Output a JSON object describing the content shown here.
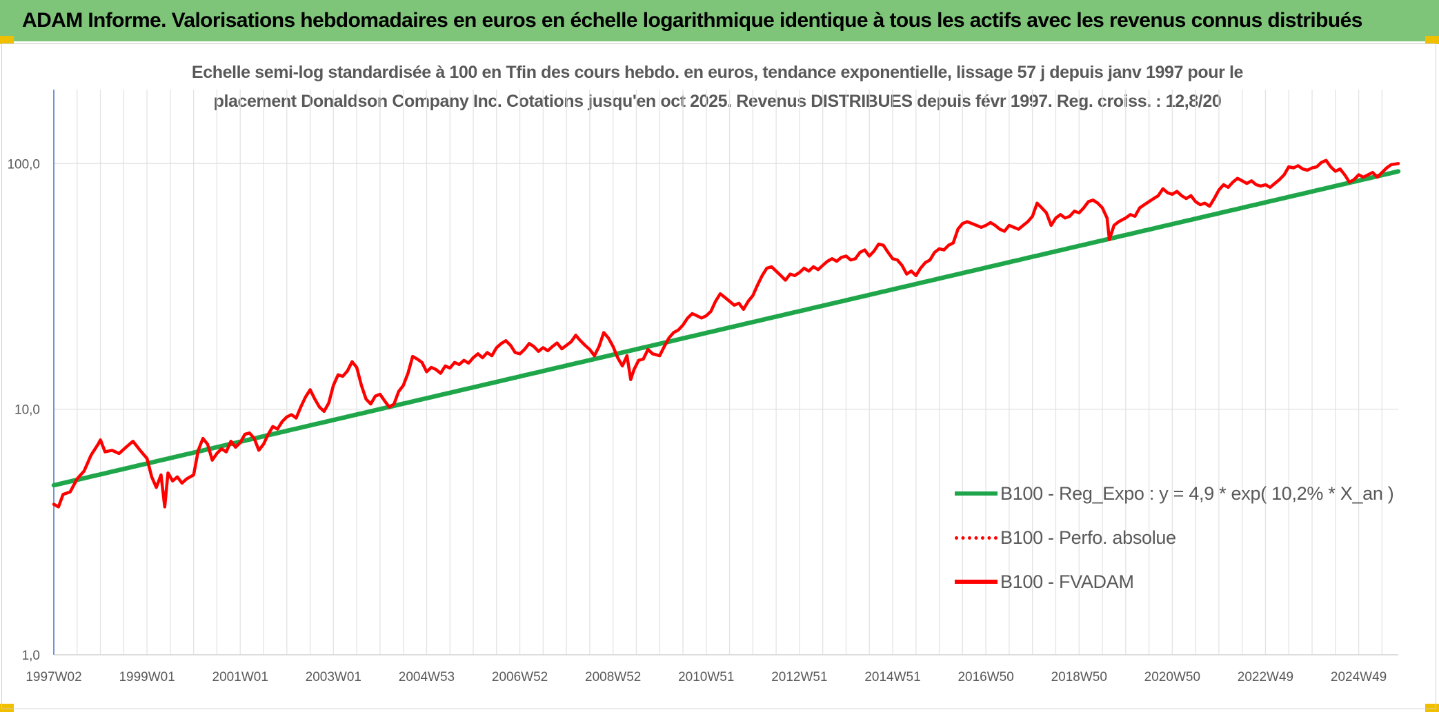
{
  "header": {
    "title": "ADAM Informe. Valorisations hebdomadaires en euros en échelle logarithmique identique à tous les actifs avec les revenus connus distribués"
  },
  "chart_data": {
    "type": "line",
    "title_line1": "Echelle semi-log standardisée à 100 en Tfin des cours hebdo. en euros, tendance exponentielle, lissage 57 j depuis janv 1997 pour le",
    "title_line2": "placement Donaldson Company Inc. Cotations jusqu'en oct 2025. Revenus DISTRIBUES depuis févr 1997. Reg. croiss. : 12,8/20",
    "y_scale": "log",
    "ylim": [
      1,
      200
    ],
    "y_ticks": [
      {
        "value": 1,
        "label": "1,0"
      },
      {
        "value": 10,
        "label": "10,0"
      },
      {
        "value": 100,
        "label": "100,0"
      }
    ],
    "xlim": [
      1997.0,
      2025.85
    ],
    "x_ticks": [
      {
        "t": 1997.0,
        "label": "1997W02"
      },
      {
        "t": 1999.0,
        "label": "1999W01"
      },
      {
        "t": 2001.0,
        "label": "2001W01"
      },
      {
        "t": 2003.0,
        "label": "2003W01"
      },
      {
        "t": 2005.0,
        "label": "2004W53"
      },
      {
        "t": 2007.0,
        "label": "2006W52"
      },
      {
        "t": 2009.0,
        "label": "2008W52"
      },
      {
        "t": 2011.0,
        "label": "2010W51"
      },
      {
        "t": 2013.0,
        "label": "2012W51"
      },
      {
        "t": 2015.0,
        "label": "2014W51"
      },
      {
        "t": 2017.0,
        "label": "2016W50"
      },
      {
        "t": 2019.0,
        "label": "2018W50"
      },
      {
        "t": 2021.0,
        "label": "2020W50"
      },
      {
        "t": 2023.0,
        "label": "2022W49"
      },
      {
        "t": 2025.0,
        "label": "2024W49"
      }
    ],
    "legend_position": "bottom-right",
    "series": [
      {
        "name": "B100 - Reg_Expo : y = 4,9 * exp( 10,2% *  X_an )",
        "style": "solid",
        "color": "#1fa64a",
        "a": 4.9,
        "rate": 0.102,
        "x_start": 1997.0,
        "x_end": 2025.85
      },
      {
        "name": "B100 - Perfo. absolue",
        "style": "dotted",
        "color": "#ff0000",
        "points": []
      },
      {
        "name": "B100 - FVADAM",
        "style": "solid",
        "color": "#ff0000",
        "points": [
          [
            1997.0,
            4.1
          ],
          [
            1997.1,
            4.0
          ],
          [
            1997.2,
            4.5
          ],
          [
            1997.35,
            4.6
          ],
          [
            1997.5,
            5.2
          ],
          [
            1997.65,
            5.6
          ],
          [
            1997.8,
            6.5
          ],
          [
            1997.95,
            7.2
          ],
          [
            1998.0,
            7.5
          ],
          [
            1998.1,
            6.7
          ],
          [
            1998.25,
            6.8
          ],
          [
            1998.4,
            6.6
          ],
          [
            1998.55,
            7.0
          ],
          [
            1998.7,
            7.4
          ],
          [
            1998.85,
            6.8
          ],
          [
            1999.0,
            6.3
          ],
          [
            1999.1,
            5.3
          ],
          [
            1999.2,
            4.8
          ],
          [
            1999.3,
            5.4
          ],
          [
            1999.38,
            4.0
          ],
          [
            1999.45,
            5.5
          ],
          [
            1999.55,
            5.1
          ],
          [
            1999.65,
            5.3
          ],
          [
            1999.75,
            5.0
          ],
          [
            1999.85,
            5.2
          ],
          [
            2000.0,
            5.4
          ],
          [
            2000.1,
            6.8
          ],
          [
            2000.2,
            7.6
          ],
          [
            2000.3,
            7.2
          ],
          [
            2000.4,
            6.2
          ],
          [
            2000.5,
            6.6
          ],
          [
            2000.6,
            6.9
          ],
          [
            2000.7,
            6.7
          ],
          [
            2000.8,
            7.4
          ],
          [
            2000.9,
            7.0
          ],
          [
            2001.0,
            7.3
          ],
          [
            2001.1,
            7.9
          ],
          [
            2001.2,
            8.0
          ],
          [
            2001.3,
            7.6
          ],
          [
            2001.4,
            6.8
          ],
          [
            2001.5,
            7.2
          ],
          [
            2001.6,
            7.9
          ],
          [
            2001.7,
            8.5
          ],
          [
            2001.8,
            8.3
          ],
          [
            2001.9,
            8.9
          ],
          [
            2002.0,
            9.3
          ],
          [
            2002.1,
            9.5
          ],
          [
            2002.2,
            9.2
          ],
          [
            2002.3,
            10.2
          ],
          [
            2002.4,
            11.2
          ],
          [
            2002.5,
            12.0
          ],
          [
            2002.6,
            11.0
          ],
          [
            2002.7,
            10.2
          ],
          [
            2002.8,
            9.8
          ],
          [
            2002.9,
            10.6
          ],
          [
            2003.0,
            12.5
          ],
          [
            2003.1,
            13.8
          ],
          [
            2003.2,
            13.6
          ],
          [
            2003.3,
            14.3
          ],
          [
            2003.4,
            15.6
          ],
          [
            2003.5,
            14.8
          ],
          [
            2003.6,
            12.5
          ],
          [
            2003.7,
            11.0
          ],
          [
            2003.8,
            10.5
          ],
          [
            2003.9,
            11.3
          ],
          [
            2004.0,
            11.5
          ],
          [
            2004.1,
            10.8
          ],
          [
            2004.2,
            10.2
          ],
          [
            2004.3,
            10.5
          ],
          [
            2004.4,
            11.8
          ],
          [
            2004.5,
            12.5
          ],
          [
            2004.6,
            14.0
          ],
          [
            2004.7,
            16.4
          ],
          [
            2004.8,
            16.0
          ],
          [
            2004.9,
            15.5
          ],
          [
            2005.0,
            14.2
          ],
          [
            2005.1,
            14.8
          ],
          [
            2005.2,
            14.5
          ],
          [
            2005.3,
            14.0
          ],
          [
            2005.4,
            15.0
          ],
          [
            2005.5,
            14.7
          ],
          [
            2005.6,
            15.5
          ],
          [
            2005.7,
            15.2
          ],
          [
            2005.8,
            15.8
          ],
          [
            2005.9,
            15.4
          ],
          [
            2006.0,
            16.2
          ],
          [
            2006.1,
            16.8
          ],
          [
            2006.2,
            16.2
          ],
          [
            2006.3,
            17.0
          ],
          [
            2006.4,
            16.5
          ],
          [
            2006.5,
            17.8
          ],
          [
            2006.6,
            18.5
          ],
          [
            2006.7,
            19.0
          ],
          [
            2006.8,
            18.2
          ],
          [
            2006.9,
            17.0
          ],
          [
            2007.0,
            16.8
          ],
          [
            2007.1,
            17.5
          ],
          [
            2007.2,
            18.5
          ],
          [
            2007.3,
            18.0
          ],
          [
            2007.4,
            17.2
          ],
          [
            2007.5,
            17.8
          ],
          [
            2007.6,
            17.3
          ],
          [
            2007.7,
            18.0
          ],
          [
            2007.8,
            18.6
          ],
          [
            2007.9,
            17.6
          ],
          [
            2008.0,
            18.2
          ],
          [
            2008.1,
            18.8
          ],
          [
            2008.2,
            20.0
          ],
          [
            2008.3,
            19.0
          ],
          [
            2008.4,
            18.2
          ],
          [
            2008.5,
            17.5
          ],
          [
            2008.6,
            16.5
          ],
          [
            2008.7,
            18.0
          ],
          [
            2008.8,
            20.5
          ],
          [
            2008.9,
            19.5
          ],
          [
            2009.0,
            18.0
          ],
          [
            2009.1,
            16.2
          ],
          [
            2009.2,
            15.0
          ],
          [
            2009.3,
            16.5
          ],
          [
            2009.38,
            13.2
          ],
          [
            2009.45,
            14.5
          ],
          [
            2009.55,
            15.8
          ],
          [
            2009.65,
            16.0
          ],
          [
            2009.75,
            17.5
          ],
          [
            2009.85,
            16.8
          ],
          [
            2010.0,
            16.5
          ],
          [
            2010.1,
            18.0
          ],
          [
            2010.2,
            19.5
          ],
          [
            2010.3,
            20.5
          ],
          [
            2010.4,
            21.0
          ],
          [
            2010.5,
            22.0
          ],
          [
            2010.6,
            23.5
          ],
          [
            2010.7,
            24.5
          ],
          [
            2010.8,
            24.0
          ],
          [
            2010.9,
            23.5
          ],
          [
            2011.0,
            24.0
          ],
          [
            2011.1,
            25.0
          ],
          [
            2011.2,
            27.5
          ],
          [
            2011.3,
            29.5
          ],
          [
            2011.4,
            28.5
          ],
          [
            2011.5,
            27.5
          ],
          [
            2011.6,
            26.5
          ],
          [
            2011.7,
            27.0
          ],
          [
            2011.8,
            25.5
          ],
          [
            2011.9,
            27.5
          ],
          [
            2012.0,
            29.0
          ],
          [
            2012.1,
            32.0
          ],
          [
            2012.2,
            35.0
          ],
          [
            2012.3,
            37.5
          ],
          [
            2012.4,
            38.0
          ],
          [
            2012.5,
            36.5
          ],
          [
            2012.6,
            35.0
          ],
          [
            2012.7,
            33.5
          ],
          [
            2012.8,
            35.5
          ],
          [
            2012.9,
            35.0
          ],
          [
            2013.0,
            36.0
          ],
          [
            2013.1,
            37.5
          ],
          [
            2013.2,
            36.5
          ],
          [
            2013.3,
            38.0
          ],
          [
            2013.4,
            37.0
          ],
          [
            2013.5,
            38.5
          ],
          [
            2013.6,
            40.0
          ],
          [
            2013.7,
            41.0
          ],
          [
            2013.8,
            40.0
          ],
          [
            2013.9,
            41.5
          ],
          [
            2014.0,
            42.0
          ],
          [
            2014.1,
            40.5
          ],
          [
            2014.2,
            41.0
          ],
          [
            2014.3,
            43.5
          ],
          [
            2014.4,
            44.5
          ],
          [
            2014.5,
            42.0
          ],
          [
            2014.6,
            44.0
          ],
          [
            2014.7,
            47.0
          ],
          [
            2014.8,
            46.5
          ],
          [
            2014.9,
            43.5
          ],
          [
            2015.0,
            41.0
          ],
          [
            2015.1,
            40.5
          ],
          [
            2015.2,
            38.5
          ],
          [
            2015.3,
            35.5
          ],
          [
            2015.4,
            36.5
          ],
          [
            2015.5,
            35.0
          ],
          [
            2015.6,
            37.5
          ],
          [
            2015.7,
            39.5
          ],
          [
            2015.8,
            40.5
          ],
          [
            2015.9,
            43.5
          ],
          [
            2016.0,
            45.0
          ],
          [
            2016.1,
            44.5
          ],
          [
            2016.2,
            46.5
          ],
          [
            2016.3,
            47.5
          ],
          [
            2016.4,
            54.0
          ],
          [
            2016.5,
            57.0
          ],
          [
            2016.6,
            58.0
          ],
          [
            2016.7,
            57.0
          ],
          [
            2016.8,
            56.0
          ],
          [
            2016.9,
            55.0
          ],
          [
            2017.0,
            56.0
          ],
          [
            2017.1,
            57.5
          ],
          [
            2017.2,
            56.0
          ],
          [
            2017.3,
            54.0
          ],
          [
            2017.4,
            53.0
          ],
          [
            2017.5,
            56.0
          ],
          [
            2017.6,
            55.0
          ],
          [
            2017.7,
            54.0
          ],
          [
            2017.8,
            56.0
          ],
          [
            2017.9,
            58.0
          ],
          [
            2018.0,
            61.0
          ],
          [
            2018.1,
            69.0
          ],
          [
            2018.2,
            66.0
          ],
          [
            2018.3,
            63.0
          ],
          [
            2018.4,
            56.0
          ],
          [
            2018.5,
            60.0
          ],
          [
            2018.6,
            62.0
          ],
          [
            2018.7,
            60.0
          ],
          [
            2018.8,
            61.0
          ],
          [
            2018.9,
            64.0
          ],
          [
            2019.0,
            63.0
          ],
          [
            2019.1,
            66.0
          ],
          [
            2019.2,
            70.0
          ],
          [
            2019.3,
            71.0
          ],
          [
            2019.4,
            69.0
          ],
          [
            2019.5,
            66.0
          ],
          [
            2019.6,
            60.0
          ],
          [
            2019.65,
            49.0
          ],
          [
            2019.75,
            56.0
          ],
          [
            2019.85,
            58.0
          ],
          [
            2020.0,
            60.0
          ],
          [
            2020.1,
            62.0
          ],
          [
            2020.2,
            61.0
          ],
          [
            2020.3,
            66.0
          ],
          [
            2020.4,
            68.0
          ],
          [
            2020.5,
            70.0
          ],
          [
            2020.6,
            72.0
          ],
          [
            2020.7,
            74.0
          ],
          [
            2020.8,
            79.0
          ],
          [
            2020.9,
            76.0
          ],
          [
            2021.0,
            75.0
          ],
          [
            2021.1,
            77.0
          ],
          [
            2021.2,
            74.0
          ],
          [
            2021.3,
            72.0
          ],
          [
            2021.4,
            74.0
          ],
          [
            2021.5,
            70.0
          ],
          [
            2021.6,
            68.0
          ],
          [
            2021.7,
            69.0
          ],
          [
            2021.8,
            67.0
          ],
          [
            2021.9,
            72.0
          ],
          [
            2022.0,
            78.0
          ],
          [
            2022.1,
            82.0
          ],
          [
            2022.2,
            80.0
          ],
          [
            2022.3,
            84.0
          ],
          [
            2022.4,
            87.0
          ],
          [
            2022.5,
            85.0
          ],
          [
            2022.6,
            83.0
          ],
          [
            2022.7,
            85.0
          ],
          [
            2022.8,
            82.0
          ],
          [
            2022.9,
            81.0
          ],
          [
            2023.0,
            82.0
          ],
          [
            2023.1,
            80.0
          ],
          [
            2023.2,
            83.0
          ],
          [
            2023.3,
            86.0
          ],
          [
            2023.4,
            90.0
          ],
          [
            2023.5,
            97.0
          ],
          [
            2023.6,
            96.0
          ],
          [
            2023.7,
            98.0
          ],
          [
            2023.8,
            95.0
          ],
          [
            2023.9,
            94.0
          ],
          [
            2024.0,
            96.0
          ],
          [
            2024.1,
            97.0
          ],
          [
            2024.2,
            101.0
          ],
          [
            2024.3,
            103.0
          ],
          [
            2024.4,
            97.0
          ],
          [
            2024.5,
            93.0
          ],
          [
            2024.6,
            95.0
          ],
          [
            2024.7,
            90.0
          ],
          [
            2024.8,
            84.0
          ],
          [
            2024.9,
            86.0
          ],
          [
            2025.0,
            90.0
          ],
          [
            2025.1,
            88.0
          ],
          [
            2025.2,
            90.0
          ],
          [
            2025.3,
            92.0
          ],
          [
            2025.4,
            88.0
          ],
          [
            2025.5,
            92.0
          ],
          [
            2025.6,
            96.0
          ],
          [
            2025.7,
            99.0
          ],
          [
            2025.85,
            100.0
          ]
        ]
      }
    ]
  }
}
